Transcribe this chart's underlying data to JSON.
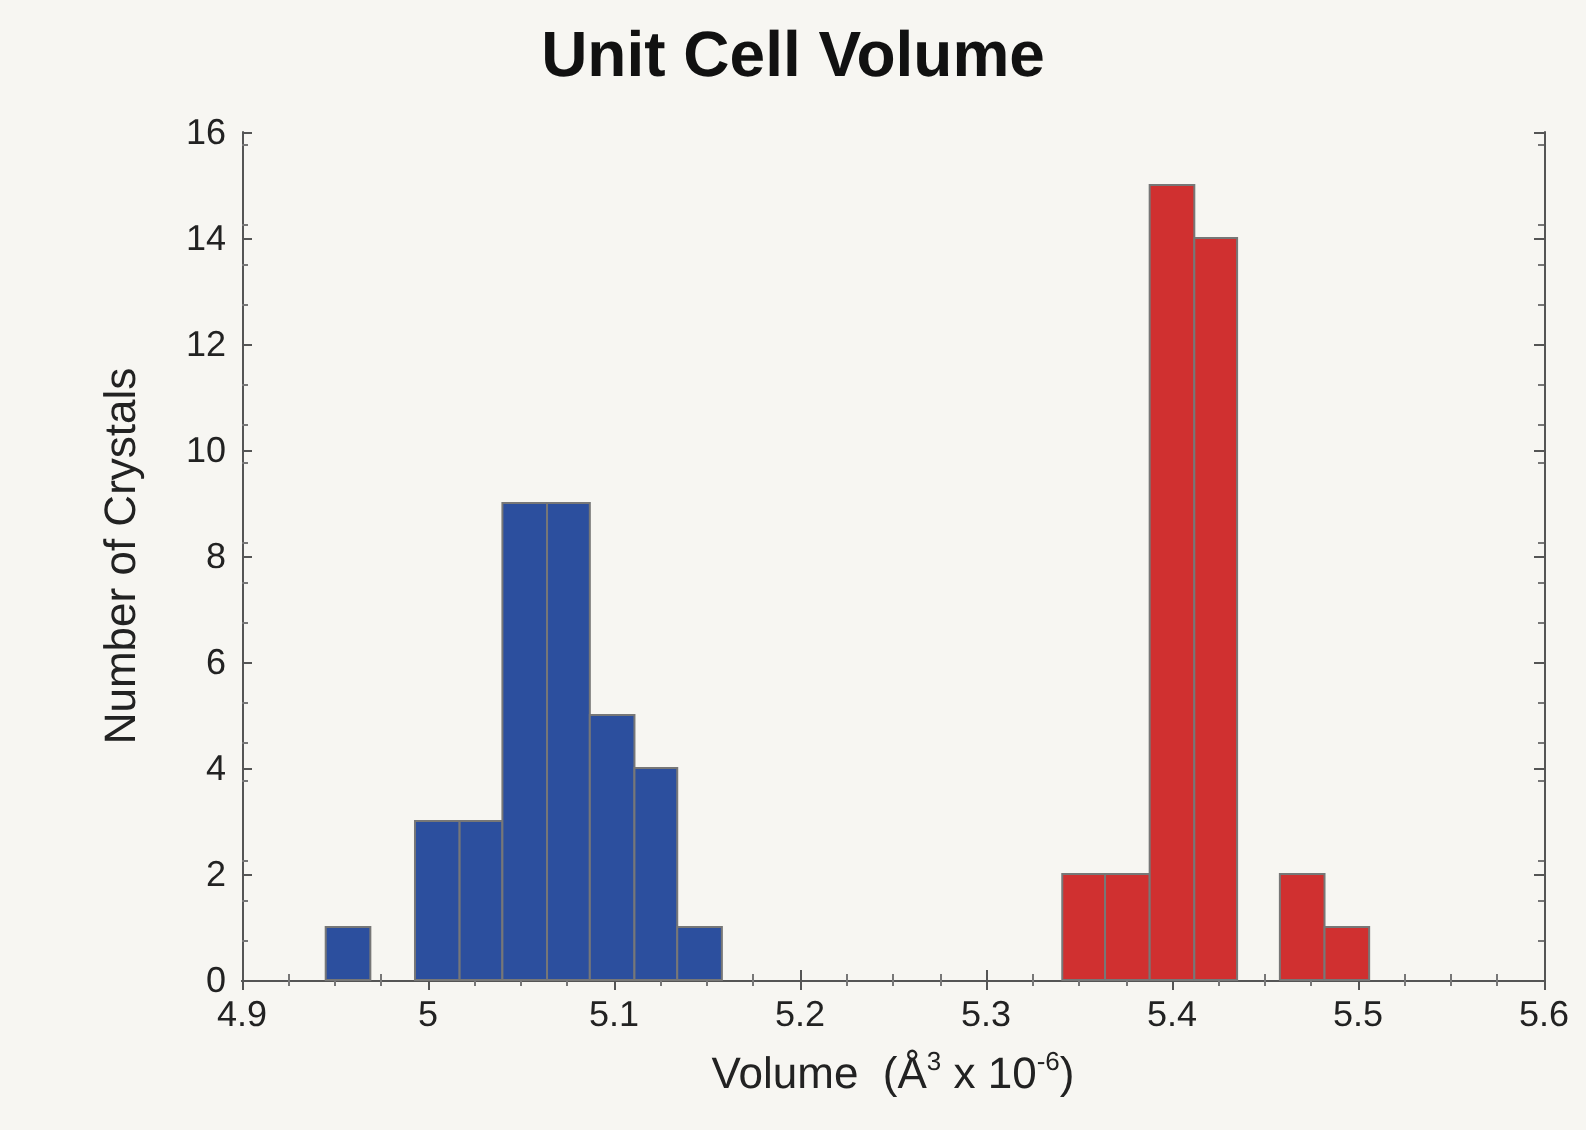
{
  "chart_data": {
    "type": "histogram",
    "title": "Unit Cell Volume",
    "xlabel": "Volume  (Å$^{3}$ x 10$^{-6}$)",
    "ylabel": "Number of Crystals",
    "bins": [
      4.945,
      4.969,
      4.993,
      5.017,
      5.04,
      5.064,
      5.087,
      5.111,
      5.134,
      5.158,
      5.341,
      5.364,
      5.388,
      5.412,
      5.435,
      5.458,
      5.482,
      5.506
    ],
    "values": [
      1,
      0,
      3,
      3,
      9,
      9,
      5,
      4,
      1,
      0,
      2,
      2,
      15,
      14,
      0,
      2,
      1
    ],
    "colors": [
      "#2c4f9e",
      "#2c4f9e",
      "#2c4f9e",
      "#2c4f9e",
      "#2c4f9e",
      "#2c4f9e",
      "#2c4f9e",
      "#2c4f9e",
      "#2c4f9e",
      "#d03030",
      "#d03030",
      "#d03030",
      "#d03030",
      "#d03030",
      "#d03030",
      "#d03030",
      "#d03030"
    ],
    "xlim": [
      4.9,
      5.6
    ],
    "xticks": [
      4.9,
      5,
      5.1,
      5.2,
      5.3,
      5.4,
      5.5,
      5.6
    ],
    "ylim": [
      0,
      16
    ],
    "yticks": [
      0,
      2,
      4,
      6,
      8,
      10,
      12,
      14,
      16
    ],
    "grid": false
  }
}
